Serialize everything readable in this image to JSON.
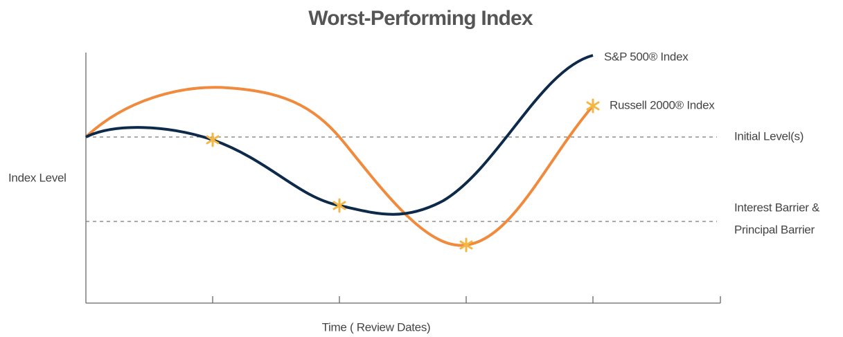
{
  "title": "Worst-Performing Index",
  "y_axis_label": "Index Level",
  "x_axis_label": "Time ( Review Dates)",
  "line_labels": [
    "S&P 500® Index",
    "Russell 2000® Index"
  ],
  "levels": {
    "initial": "Initial Level(s)",
    "barrier": [
      "Interest Barrier &",
      "Principal Barrier"
    ]
  }
}
